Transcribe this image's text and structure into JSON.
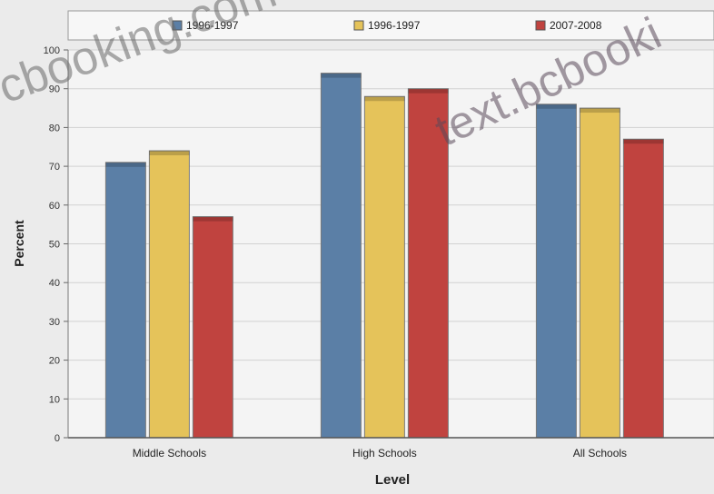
{
  "watermarks": [
    "cbooking.com",
    "text.bcbooki"
  ],
  "chart_data": {
    "type": "bar",
    "categories": [
      "Middle Schools",
      "High Schools",
      "All Schools"
    ],
    "series": [
      {
        "name": "1996-1997",
        "values": [
          71,
          94,
          86
        ],
        "color": "#5b7fa6"
      },
      {
        "name": "1996-1997",
        "values": [
          74,
          88,
          85
        ],
        "color": "#e5c35a"
      },
      {
        "name": "2007-2008",
        "values": [
          57,
          90,
          77
        ],
        "color": "#c0433f"
      }
    ],
    "title": "",
    "xlabel": "Level",
    "ylabel": "Percent",
    "ylim": [
      0,
      100
    ],
    "yticks": [
      0,
      10,
      20,
      30,
      40,
      50,
      60,
      70,
      80,
      90,
      100
    ],
    "grid": true,
    "legend_position": "top"
  }
}
